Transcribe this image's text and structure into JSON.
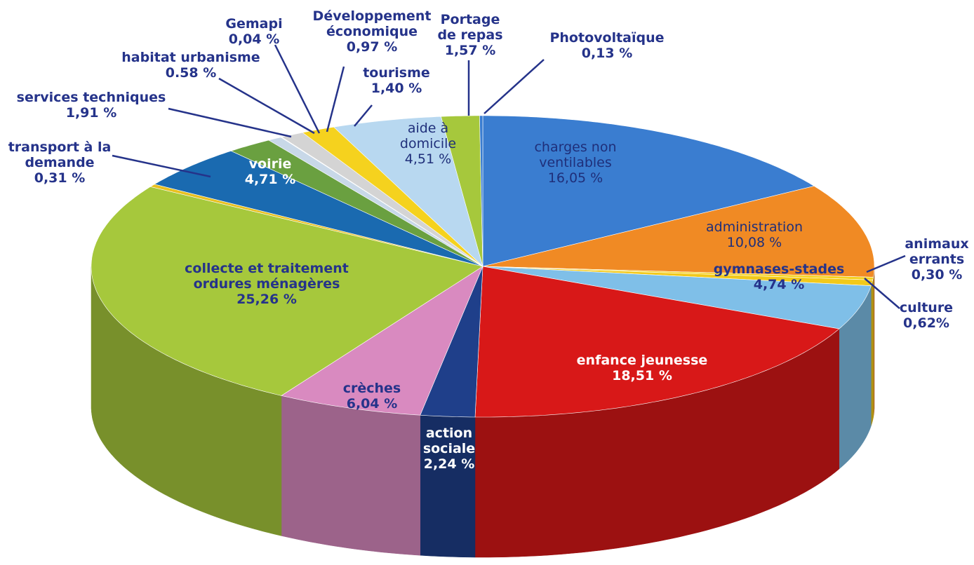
{
  "chart_data": {
    "type": "pie3d",
    "categories": [
      "charges non ventilables",
      "administration",
      "animaux errants",
      "culture",
      "gymnases-stades",
      "enfance jeunesse",
      "action sociale",
      "crèches",
      "collecte et traitement ordures ménagères",
      "transport à la demande",
      "voirie",
      "services techniques",
      "habitat urbanisme",
      "Gemapi",
      "Développement économique",
      "tourisme",
      "aide à domicile",
      "Portage de repas",
      "Photovoltaïque"
    ],
    "values": [
      16.05,
      10.08,
      0.3,
      0.62,
      4.74,
      18.51,
      2.24,
      6.04,
      25.26,
      0.31,
      4.71,
      1.91,
      0.58,
      0.04,
      0.97,
      1.4,
      4.51,
      1.57,
      0.13
    ],
    "value_labels": [
      "16,05 %",
      "10,08 %",
      "0,30 %",
      "0,62%",
      "4,74 %",
      "18,51 %",
      "2,24 %",
      "6,04 %",
      "25,26 %",
      "0,31 %",
      "4,71 %",
      "1,91 %",
      "0.58 %",
      "0,04 %",
      "0,97 %",
      "1,40 %",
      "4,51 %",
      "1,57 %",
      "0,13 %"
    ],
    "colors": [
      "#3a7dd0",
      "#f08a24",
      "#f5d21e",
      "#f2c91a",
      "#7fbfe8",
      "#d81818",
      "#1f3f8a",
      "#d98ac0",
      "#a6c83c",
      "#e8c020",
      "#1a6ab0",
      "#6aa040",
      "#c8d8e8",
      "#ffffff",
      "#d4d4d4",
      "#f5d21e",
      "#b8d8f0",
      "#a6c83c",
      "#3a7dd0"
    ]
  }
}
